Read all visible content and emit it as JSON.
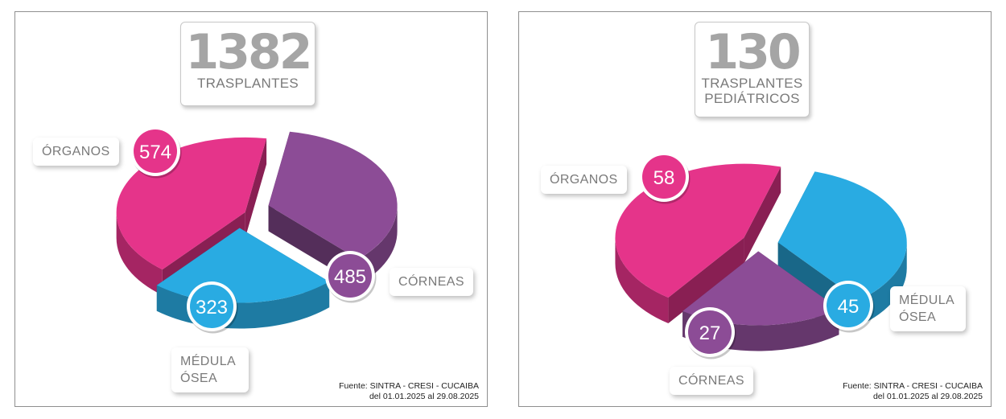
{
  "colors": {
    "organos": "#e5348a",
    "corneas": "#8c4c96",
    "medula": "#29abe2"
  },
  "chart_data": [
    {
      "type": "pie",
      "total": "1382",
      "total_label": "TRASPLANTES",
      "slices": [
        {
          "key": "organos",
          "label": "ÓRGANOS",
          "value": 574
        },
        {
          "key": "corneas",
          "label": "CÓRNEAS",
          "value": 485
        },
        {
          "key": "medula",
          "label": "MÉDULA\nÓSEA",
          "value": 323
        }
      ]
    },
    {
      "type": "pie",
      "total": "130",
      "total_label": "TRASPLANTES\nPEDIÁTRICOS",
      "slices": [
        {
          "key": "organos",
          "label": "ÓRGANOS",
          "value": 58
        },
        {
          "key": "medula",
          "label": "MÉDULA\nÓSEA",
          "value": 45
        },
        {
          "key": "corneas",
          "label": "CÓRNEAS",
          "value": 27
        }
      ]
    }
  ],
  "source": {
    "line1": "Fuente: SINTRA - CRESI - CUCAIBA",
    "line2": "del 01.01.2025 al 29.08.2025"
  }
}
